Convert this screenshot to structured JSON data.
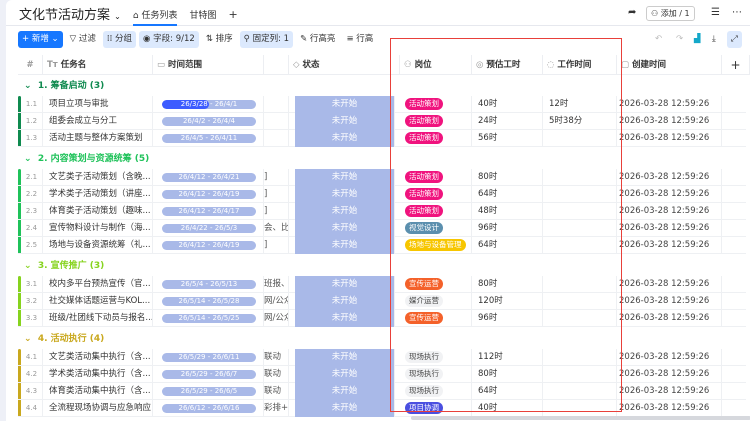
{
  "header": {
    "title": "文化节活动方案",
    "tabs": [
      "任务列表",
      "甘特图"
    ],
    "add_label": "添加 / 1"
  },
  "toolbar": {
    "new": "+ 新增",
    "filter": "过滤",
    "group": "分组",
    "fields": "字段: 9/12",
    "sort": "排序",
    "pin": "固定列: 1",
    "row_height": "行高亮",
    "row_more": "行高"
  },
  "columns": {
    "num": "#",
    "name": "任务名",
    "time": "时间范围",
    "status": "状态",
    "role": "岗位",
    "est": "预估工时",
    "work": "工作时间",
    "created": "创建时间"
  },
  "colors": {
    "accent": "#1677ff",
    "highlight_box": "#e8403a"
  },
  "groups": [
    {
      "title": "1. 筹备启动",
      "count": "(3)",
      "color": "#0f8a4f",
      "rows": [
        {
          "no": "1.1",
          "name": "项目立项与审批",
          "time": "26/3/28 - 26/4/1",
          "extra": "",
          "status": "未开始",
          "role": "活动策划",
          "roleColor": "#f0137e",
          "est": "40时",
          "work": "12时",
          "created": "2026-03-28 12:59:26",
          "progress": 0.5
        },
        {
          "no": "1.2",
          "name": "组委会成立与分工",
          "time": "26/4/2 - 26/4/4",
          "extra": "",
          "status": "未开始",
          "role": "活动策划",
          "roleColor": "#f0137e",
          "est": "24时",
          "work": "5时38分",
          "created": "2026-03-28 12:59:26"
        },
        {
          "no": "1.3",
          "name": "活动主题与整体方案策划",
          "time": "26/4/5 - 26/4/11",
          "extra": "",
          "status": "未开始",
          "role": "活动策划",
          "roleColor": "#f0137e",
          "est": "56时",
          "work": "",
          "created": "2026-03-28 12:59:26"
        }
      ]
    },
    {
      "title": "2. 内容策划与资源统筹",
      "count": "(5)",
      "color": "#1fc25a",
      "rows": [
        {
          "no": "2.1",
          "name": "文艺类子活动策划（含晚...",
          "time": "26/4/12 - 26/4/21",
          "extra": "]",
          "status": "未开始",
          "role": "活动策划",
          "roleColor": "#f0137e",
          "est": "80时",
          "work": "",
          "created": "2026-03-28 12:59:26"
        },
        {
          "no": "2.2",
          "name": "学术类子活动策划（讲座...",
          "time": "26/4/12 - 26/4/19",
          "extra": "]",
          "status": "未开始",
          "role": "活动策划",
          "roleColor": "#f0137e",
          "est": "64时",
          "work": "",
          "created": "2026-03-28 12:59:26"
        },
        {
          "no": "2.3",
          "name": "体育类子活动策划（趣味...",
          "time": "26/4/12 - 26/4/17",
          "extra": "]",
          "status": "未开始",
          "role": "活动策划",
          "roleColor": "#f0137e",
          "est": "48时",
          "work": "",
          "created": "2026-03-28 12:59:26"
        },
        {
          "no": "2.4",
          "name": "宣传物料设计与制作（海...",
          "time": "26/4/22 - 26/5/3",
          "extra": "会、比",
          "status": "未开始",
          "role": "视觉设计",
          "roleColor": "#5b8fae",
          "est": "96时",
          "work": "",
          "created": "2026-03-28 12:59:26"
        },
        {
          "no": "2.5",
          "name": "场地与设备资源统筹（礼...",
          "time": "26/4/12 - 26/4/19",
          "extra": "]",
          "status": "未开始",
          "role": "场地与设备管理",
          "roleColor": "#f7c600",
          "est": "64时",
          "work": "",
          "created": "2026-03-28 12:59:26"
        }
      ]
    },
    {
      "title": "3. 宣传推广",
      "count": "(3)",
      "color": "#86d31e",
      "rows": [
        {
          "no": "3.1",
          "name": "校内多平台预热宣传（官...",
          "time": "26/5/4 - 26/5/13",
          "extra": "班报、校",
          "status": "未开始",
          "role": "宣传运营",
          "roleColor": "#f4612a",
          "est": "80时",
          "work": "",
          "created": "2026-03-28 12:59:26"
        },
        {
          "no": "3.2",
          "name": "社交媒体话题运营与KOL...",
          "time": "26/5/14 - 26/5/28",
          "extra": "网/公众",
          "status": "未开始",
          "role": "媒介运营",
          "roleColor": "",
          "est": "120时",
          "work": "",
          "created": "2026-03-28 12:59:26"
        },
        {
          "no": "3.3",
          "name": "班级/社团线下动员与报名...",
          "time": "26/5/14 - 26/5/25",
          "extra": "网/公众",
          "status": "未开始",
          "role": "宣传运营",
          "roleColor": "#f4612a",
          "est": "96时",
          "work": "",
          "created": "2026-03-28 12:59:26"
        }
      ]
    },
    {
      "title": "4. 活动执行",
      "count": "(4)",
      "color": "#c9a81e",
      "rows": [
        {
          "no": "4.1",
          "name": "文艺类活动集中执行（含...",
          "time": "26/5/29 - 26/6/11",
          "extra": "联动",
          "status": "未开始",
          "role": "现场执行",
          "roleColor": "",
          "est": "112时",
          "work": "",
          "created": "2026-03-28 12:59:26"
        },
        {
          "no": "4.2",
          "name": "学术类活动集中执行（含...",
          "time": "26/5/29 - 26/6/7",
          "extra": "联动",
          "status": "未开始",
          "role": "现场执行",
          "roleColor": "",
          "est": "80时",
          "work": "",
          "created": "2026-03-28 12:59:26"
        },
        {
          "no": "4.3",
          "name": "体育类活动集中执行（含...",
          "time": "26/5/29 - 26/6/5",
          "extra": "联动",
          "status": "未开始",
          "role": "现场执行",
          "roleColor": "",
          "est": "64时",
          "work": "",
          "created": "2026-03-28 12:59:26"
        },
        {
          "no": "4.4",
          "name": "全流程现场协调与应急响应",
          "time": "26/6/12 - 26/6/16",
          "extra": "彩排+",
          "status": "未开始",
          "role": "项目协调",
          "roleColor": "#4a4fe0",
          "est": "40时",
          "work": "",
          "created": "2026-03-28 12:59:26"
        }
      ]
    }
  ]
}
